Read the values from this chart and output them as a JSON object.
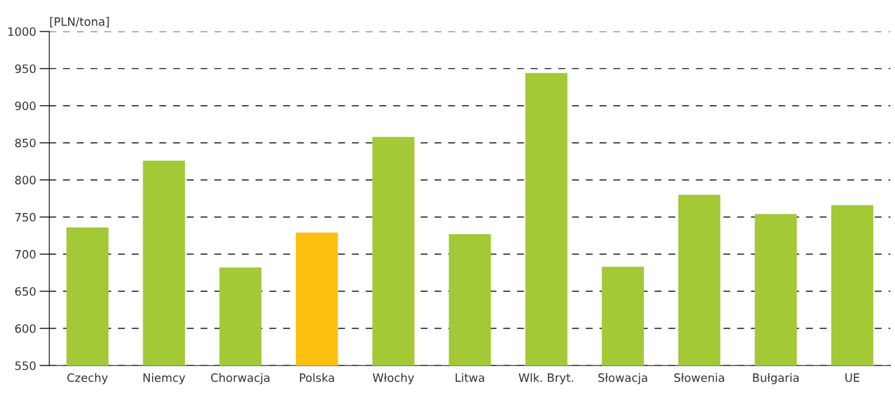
{
  "chart_data": {
    "type": "bar",
    "ylabel": "[PLN/tona]",
    "categories": [
      "Czechy",
      "Niemcy",
      "Chorwacja",
      "Polska",
      "Włochy",
      "Litwa",
      "Wlk. Bryt.",
      "Słowacja",
      "Słowenia",
      "Bułgaria",
      "UE"
    ],
    "values": [
      736,
      826,
      682,
      729,
      858,
      727,
      944,
      683,
      780,
      754,
      766
    ],
    "colors": [
      "#a3c937",
      "#a3c937",
      "#a3c937",
      "#fdc010",
      "#a3c937",
      "#a3c937",
      "#a3c937",
      "#a3c937",
      "#a3c937",
      "#a3c937",
      "#a3c937"
    ],
    "ylim": [
      550,
      1000
    ],
    "yticks": [
      550,
      600,
      650,
      700,
      750,
      800,
      850,
      900,
      950,
      1000
    ],
    "grid": "y"
  }
}
